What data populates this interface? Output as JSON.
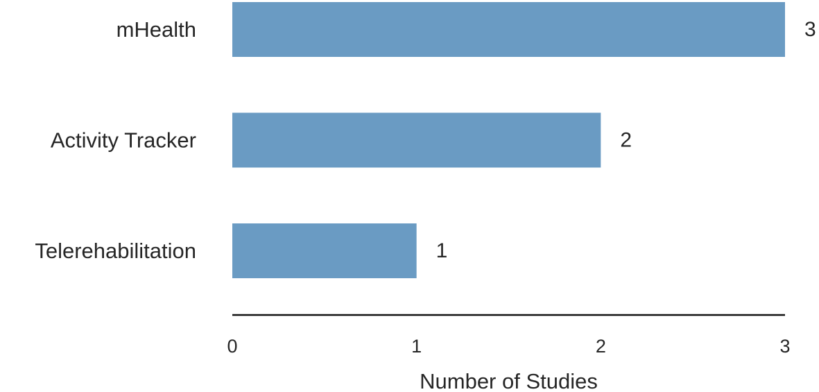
{
  "chart_data": {
    "type": "bar",
    "orientation": "horizontal",
    "categories": [
      "mHealth",
      "Activity Tracker",
      "Telerehabilitation"
    ],
    "values": [
      3,
      2,
      1
    ],
    "title": "",
    "xlabel": "Number of Studies",
    "ylabel": "",
    "xlim": [
      0,
      3
    ],
    "xticks": [
      "0",
      "1",
      "2",
      "3"
    ],
    "data_labels": [
      "3",
      "2",
      "1"
    ],
    "grid": false,
    "legend": "none",
    "bar_color": "#6a9bc3",
    "axis_color": "#111111",
    "text_color": "#262626"
  }
}
